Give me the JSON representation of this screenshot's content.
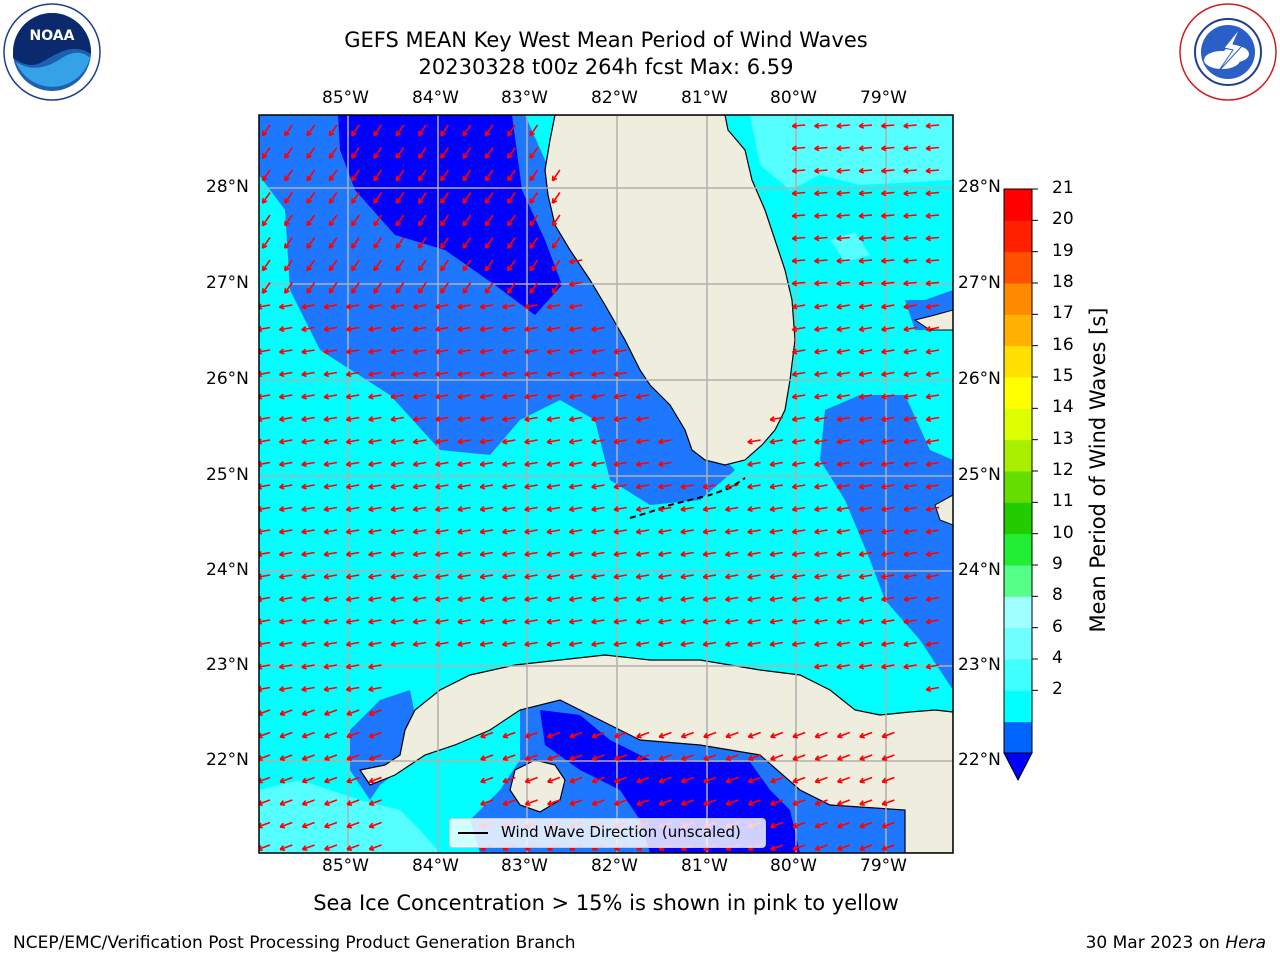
{
  "title": {
    "line1": "GEFS MEAN Key West Mean Period of Wind Waves",
    "line2": "20230328 t00z 264h fcst   Max: 6.59"
  },
  "map": {
    "lon_labels": [
      "85°W",
      "84°W",
      "83°W",
      "82°W",
      "81°W",
      "80°W",
      "79°W"
    ],
    "lat_labels": [
      "28°N",
      "27°N",
      "26°N",
      "25°N",
      "24°N",
      "23°N",
      "22°N"
    ],
    "legend_text": "Wind Wave Direction (unscaled)",
    "colors": {
      "land": "#efedde",
      "ocean_cyan": "#00ffff",
      "ocean_light": "#55ffff",
      "ocean_blue": "#1e78ff",
      "ocean_dark": "#0000ff",
      "arrow": "#ff0000",
      "grid": "#b0b0b0"
    }
  },
  "colorbar": {
    "title": "Mean Period of Wind Waves [s]",
    "tick_labels": [
      "21",
      "20",
      "19",
      "18",
      "17",
      "16",
      "15",
      "14",
      "13",
      "12",
      "11",
      "10",
      "9",
      "8",
      "6",
      "4",
      "2"
    ],
    "levels": [
      2,
      4,
      6,
      7,
      8,
      9,
      10,
      11,
      12,
      13,
      14,
      15,
      16,
      17,
      18,
      19,
      20,
      21
    ],
    "colors": [
      "#0064ff",
      "#00ffff",
      "#40ffff",
      "#70ffff",
      "#a0ffff",
      "#55ff88",
      "#22ee33",
      "#22cc00",
      "#66dd00",
      "#aaee00",
      "#ddff00",
      "#ffff00",
      "#ffe000",
      "#ffb000",
      "#ff8a00",
      "#ff5000",
      "#ff2000",
      "#ff0000"
    ],
    "extend_color": "#0000ff"
  },
  "note": "Sea Ice Concentration > 15% is shown in pink to yellow",
  "footer": {
    "left": "NCEP/EMC/Verification Post Processing Product Generation Branch",
    "date": "30 Mar 2023 on ",
    "machine": "Hera"
  },
  "logos": {
    "left_icon": "noaa-logo-icon",
    "left_text": "NOAA",
    "right_icon": "nws-logo-icon",
    "right_text": "NATIONAL WEATHER SERVICE"
  }
}
